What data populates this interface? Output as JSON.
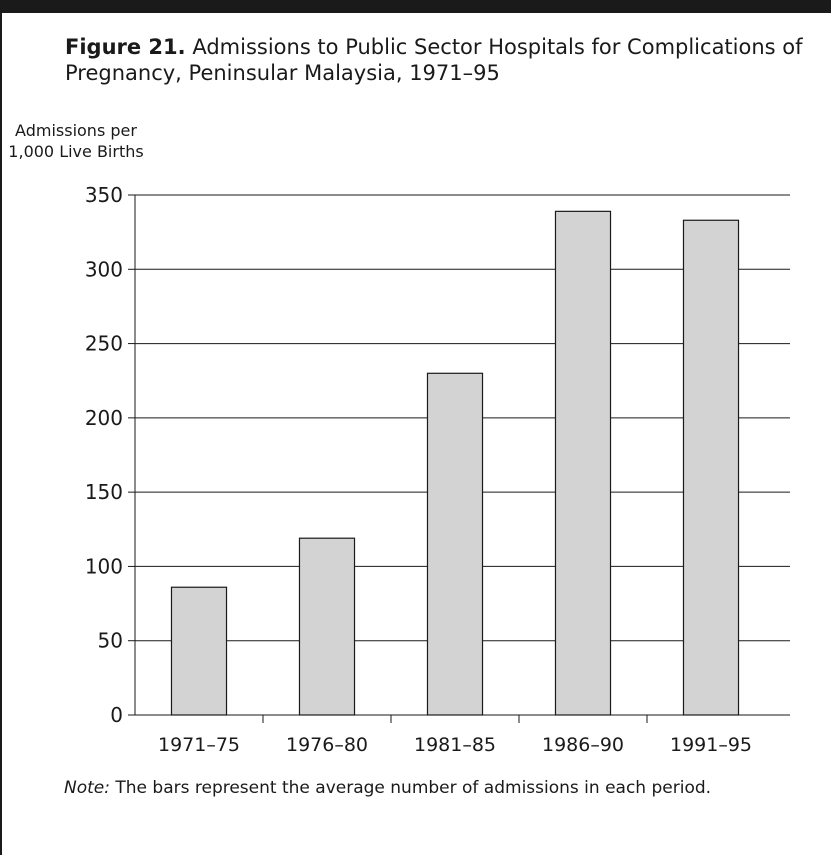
{
  "chart_data": {
    "type": "bar",
    "title_prefix": "Figure 21.",
    "title": "Admissions to Public Sector Hospitals for Complications of Pregnancy, Peninsular Malaysia, 1971–95",
    "ylabel_line1": "Admissions per",
    "ylabel_line2": "1,000 Live Births",
    "xlabel": "",
    "categories": [
      "1971–75",
      "1976–80",
      "1981–85",
      "1986–90",
      "1991–95"
    ],
    "values": [
      86,
      119,
      230,
      339,
      333
    ],
    "ylim": [
      0,
      350
    ],
    "yticks": [
      0,
      50,
      100,
      150,
      200,
      250,
      300,
      350
    ],
    "grid": true,
    "colors": {
      "bar": "#d3d3d3",
      "stroke": "#1a1a1a"
    }
  },
  "note": {
    "label": "Note:",
    "text": " The bars represent the average number of admissions in each period."
  }
}
